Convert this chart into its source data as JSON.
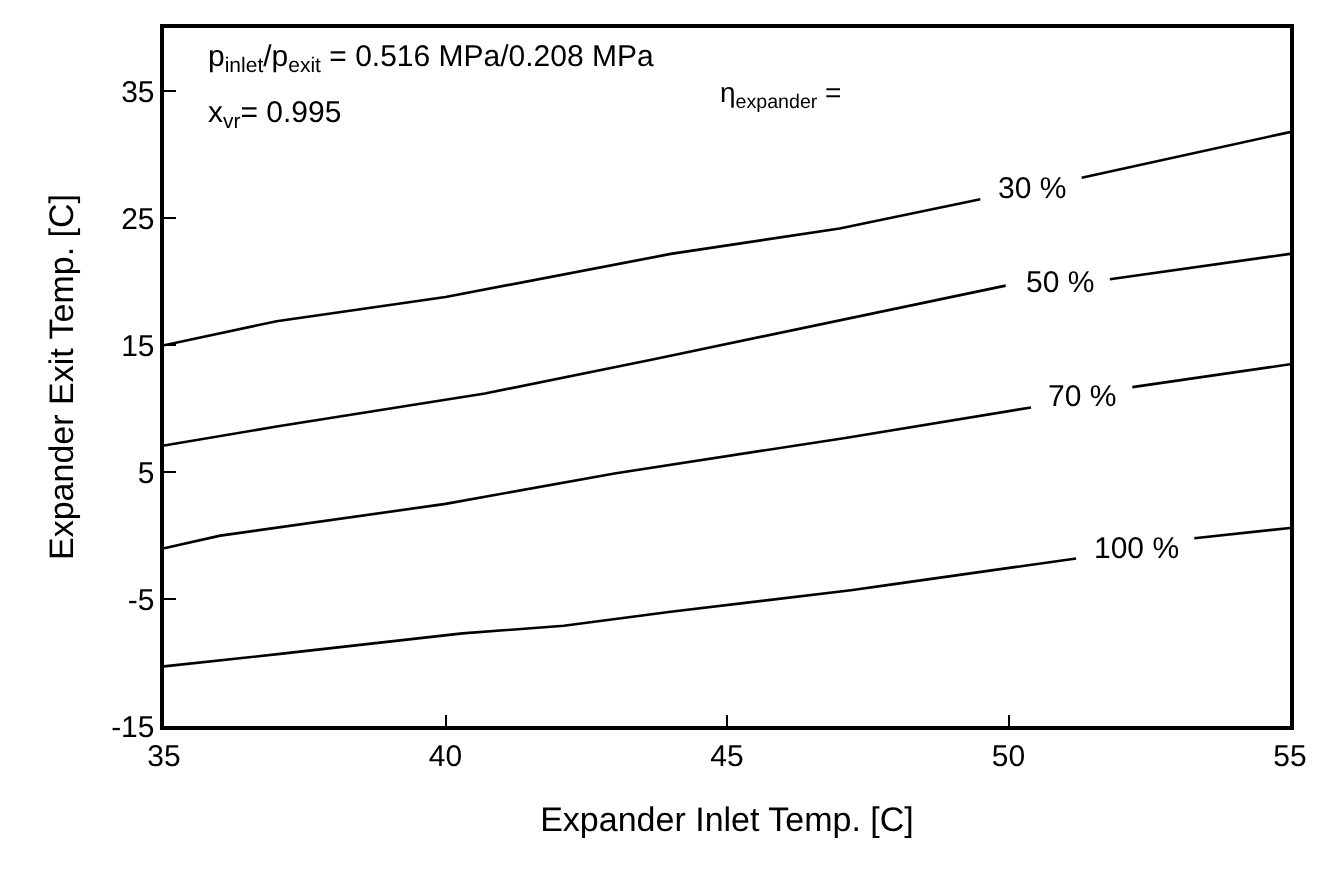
{
  "chart_data": {
    "type": "line",
    "xlabel": "Expander Inlet Temp. [C]",
    "ylabel": "Expander Exit Temp. [C]",
    "xlim": [
      35,
      55
    ],
    "xticks": [
      35,
      40,
      45,
      50,
      55
    ],
    "ylim": [
      -15,
      40
    ],
    "yticks": [
      -15,
      -5,
      5,
      15,
      25,
      35
    ],
    "legend": false,
    "marker": "none",
    "line_style": "solid",
    "annotations": [
      "p$_{inlet}$/p$_{exit}$ = 0.516 MPa/0.208 MPa",
      "x$_{vr}$= 0.995",
      "η$_{expander}$ ="
    ],
    "series": [
      {
        "name": "30 %",
        "color": "#000000",
        "x": [
          35,
          37,
          40,
          44,
          47,
          49.5,
          50.4,
          51.3,
          55
        ],
        "values": [
          15,
          16.9,
          18.8,
          22.2,
          24.2,
          26.5,
          null,
          28.2,
          31.8
        ]
      },
      {
        "name": "50 %",
        "color": "#000000",
        "x": [
          35,
          37,
          40.7,
          43.7,
          49.95,
          50.9,
          51.8,
          55
        ],
        "values": [
          7.1,
          8.6,
          11.2,
          13.9,
          19.7,
          null,
          20.2,
          22.2
        ]
      },
      {
        "name": "70 %",
        "color": "#000000",
        "x": [
          35,
          36,
          40,
          43,
          47.1,
          50.4,
          51.3,
          52.2,
          55
        ],
        "values": [
          -1,
          0,
          2.5,
          4.9,
          7.7,
          10.1,
          null,
          11.7,
          13.5
        ]
      },
      {
        "name": "100 %",
        "color": "#000000",
        "x": [
          35,
          37.1,
          40.3,
          42.1,
          44,
          47.2,
          48,
          51.2,
          52.3,
          53.3,
          55
        ],
        "values": [
          -10.3,
          -9.3,
          -7.7,
          -7.1,
          -6.0,
          -4.3,
          -3.8,
          -1.8,
          null,
          -0.2,
          0.6
        ]
      }
    ]
  }
}
